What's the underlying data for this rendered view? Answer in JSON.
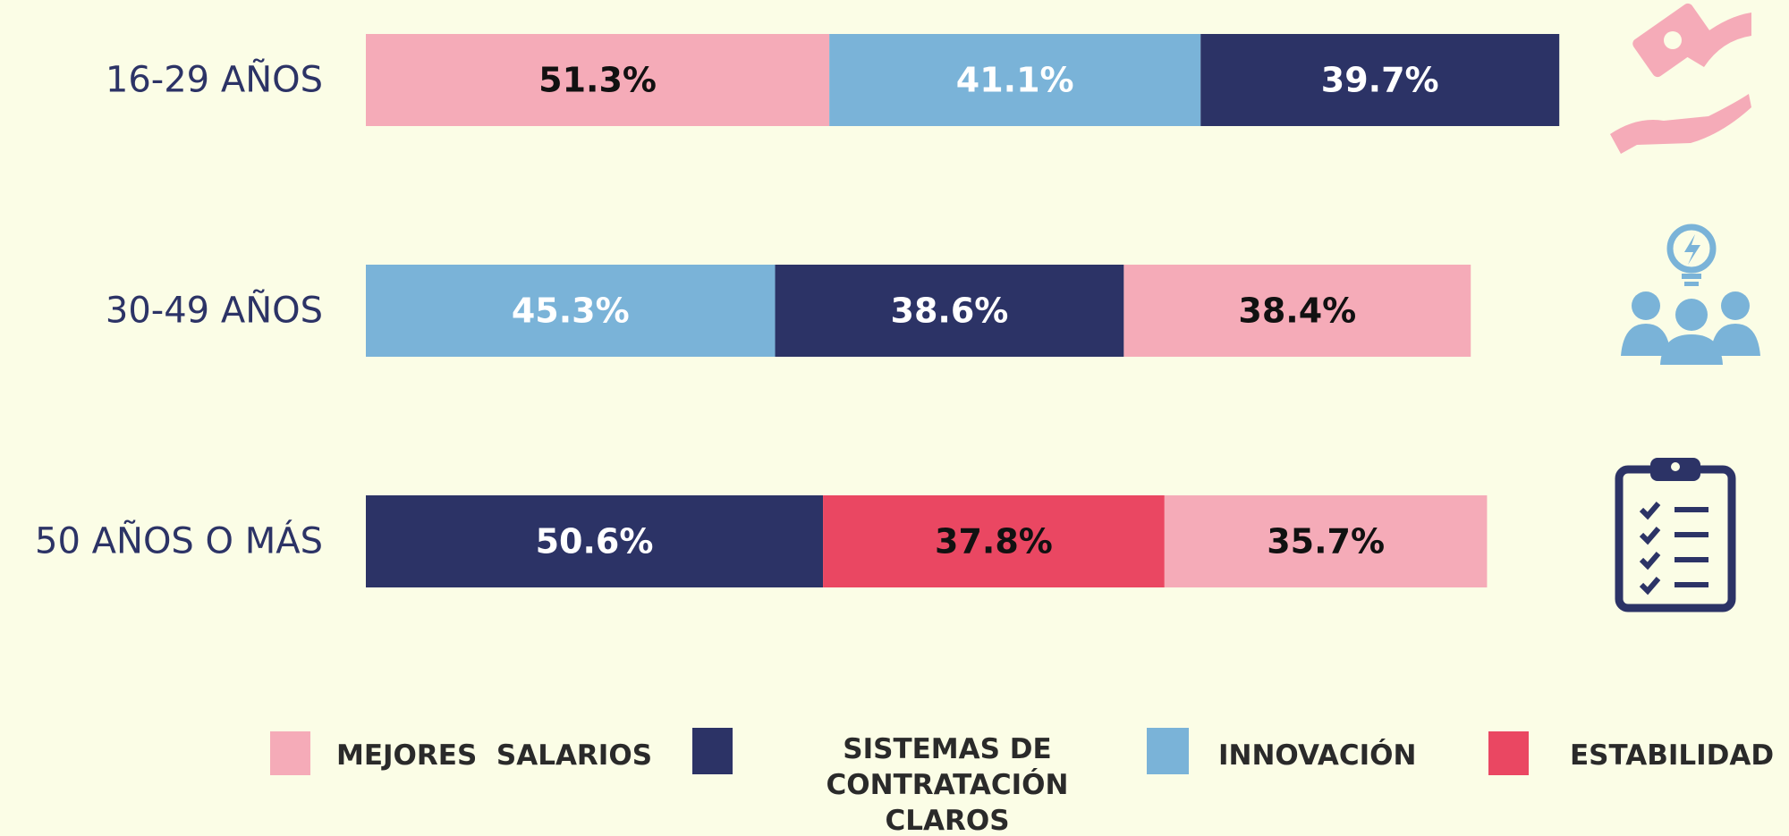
{
  "chart_data": {
    "type": "stacked-bar-horizontal",
    "rows": [
      {
        "label": "16-29 AÑOS",
        "segments": [
          {
            "value": 51.3,
            "value_label": "51.3%",
            "color": "#f5abb8",
            "label_color": "#111111"
          },
          {
            "value": 41.1,
            "value_label": "41.1%",
            "color": "#7ab3d8",
            "label_color": "#ffffff"
          },
          {
            "value": 39.7,
            "value_label": "39.7%",
            "color": "#2c3366",
            "label_color": "#ffffff"
          }
        ]
      },
      {
        "label": "30-49 AÑOS",
        "segments": [
          {
            "value": 45.3,
            "value_label": "45.3%",
            "color": "#7ab3d8",
            "label_color": "#ffffff"
          },
          {
            "value": 38.6,
            "value_label": "38.6%",
            "color": "#2c3366",
            "label_color": "#ffffff"
          },
          {
            "value": 38.4,
            "value_label": "38.4%",
            "color": "#f5abb8",
            "label_color": "#111111"
          }
        ]
      },
      {
        "label": "50 AÑOS O MÁS",
        "segments": [
          {
            "value": 50.6,
            "value_label": "50.6%",
            "color": "#2c3366",
            "label_color": "#ffffff"
          },
          {
            "value": 37.8,
            "value_label": "37.8%",
            "color": "#ea4762",
            "label_color": "#111111"
          },
          {
            "value": 35.7,
            "value_label": "35.7%",
            "color": "#f5abb8",
            "label_color": "#111111"
          }
        ]
      }
    ],
    "legend": [
      {
        "name": "MEJORES  SALARIOS",
        "color": "#f5abb8"
      },
      {
        "name": "SISTEMAS DE CONTRATACIÓN CLAROS",
        "color": "#2c3366"
      },
      {
        "name": "INNOVACIÓN",
        "color": "#7ab3d8"
      },
      {
        "name": "ESTABILIDAD",
        "color": "#ea4762"
      }
    ]
  }
}
